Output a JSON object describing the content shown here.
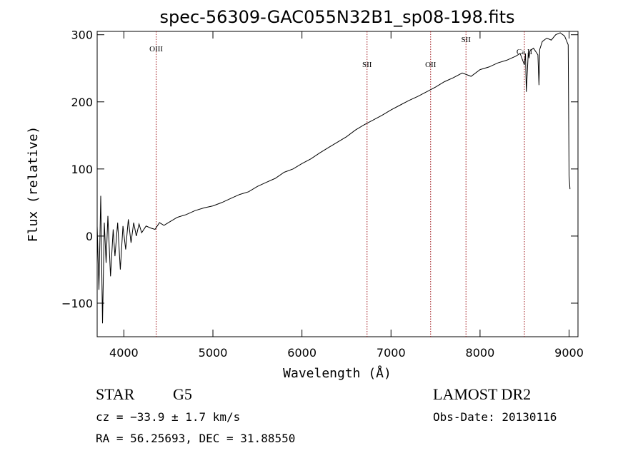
{
  "chart_data": {
    "type": "line",
    "title": "spec-56309-GAC055N32B1_sp08-198.fits",
    "xlabel": "Wavelength (Å)",
    "ylabel": "Flux (relative)",
    "xlim": [
      3700,
      9100
    ],
    "ylim": [
      -150,
      305
    ],
    "x_ticks": [
      4000,
      5000,
      6000,
      7000,
      8000,
      9000
    ],
    "y_ticks": [
      -100,
      0,
      100,
      200,
      300
    ],
    "x_tick_labels": [
      "4000",
      "5000",
      "6000",
      "7000",
      "8000",
      "9000"
    ],
    "y_tick_labels": [
      "−100",
      "0",
      "100",
      "200",
      "300"
    ],
    "grid": false,
    "series": [
      {
        "x": [
          3700,
          3720,
          3740,
          3760,
          3780,
          3800,
          3820,
          3850,
          3880,
          3900,
          3930,
          3960,
          3990,
          4020,
          4050,
          4080,
          4110,
          4140,
          4170,
          4200,
          4250,
          4300,
          4350,
          4400,
          4450,
          4500,
          4600,
          4700,
          4800,
          4900,
          5000,
          5100,
          5200,
          5300,
          5400,
          5500,
          5600,
          5700,
          5800,
          5900,
          6000,
          6100,
          6200,
          6300,
          6400,
          6500,
          6600,
          6700,
          6800,
          6900,
          7000,
          7100,
          7200,
          7300,
          7400,
          7500,
          7600,
          7700,
          7800,
          7900,
          8000,
          8100,
          8200,
          8300,
          8400,
          8450,
          8498,
          8510,
          8520,
          8542,
          8550,
          8560,
          8600,
          8650,
          8662,
          8670,
          8700,
          8750,
          8800,
          8850,
          8900,
          8950,
          8990,
          9000,
          9010
        ],
        "y": [
          15,
          -80,
          60,
          -130,
          20,
          -40,
          30,
          -60,
          10,
          -30,
          20,
          -50,
          15,
          -20,
          25,
          -10,
          20,
          0,
          18,
          5,
          15,
          12,
          10,
          20,
          16,
          20,
          28,
          32,
          38,
          42,
          45,
          50,
          56,
          62,
          66,
          74,
          80,
          86,
          95,
          100,
          108,
          115,
          124,
          132,
          140,
          148,
          158,
          166,
          173,
          180,
          188,
          195,
          202,
          208,
          215,
          222,
          230,
          236,
          243,
          238,
          248,
          252,
          258,
          262,
          268,
          272,
          255,
          272,
          215,
          275,
          265,
          276,
          280,
          270,
          225,
          278,
          290,
          295,
          292,
          300,
          303,
          298,
          285,
          90,
          70
        ]
      }
    ],
    "line_markers": [
      {
        "label": "OIII",
        "x": 4363
      },
      {
        "label": "SII",
        "x": 6731
      },
      {
        "label": "OII",
        "x": 7445
      },
      {
        "label": "SII",
        "x": 7842
      },
      {
        "label": "Ca II",
        "x": 8498
      }
    ]
  },
  "info": {
    "class": "STAR",
    "subclass": "G5",
    "survey": "LAMOST DR2",
    "cz": "cz = −33.9 ± 1.7 km/s",
    "obs_date": "Obs-Date: 20130116",
    "radec": "RA =  56.25693, DEC =  31.88550"
  }
}
